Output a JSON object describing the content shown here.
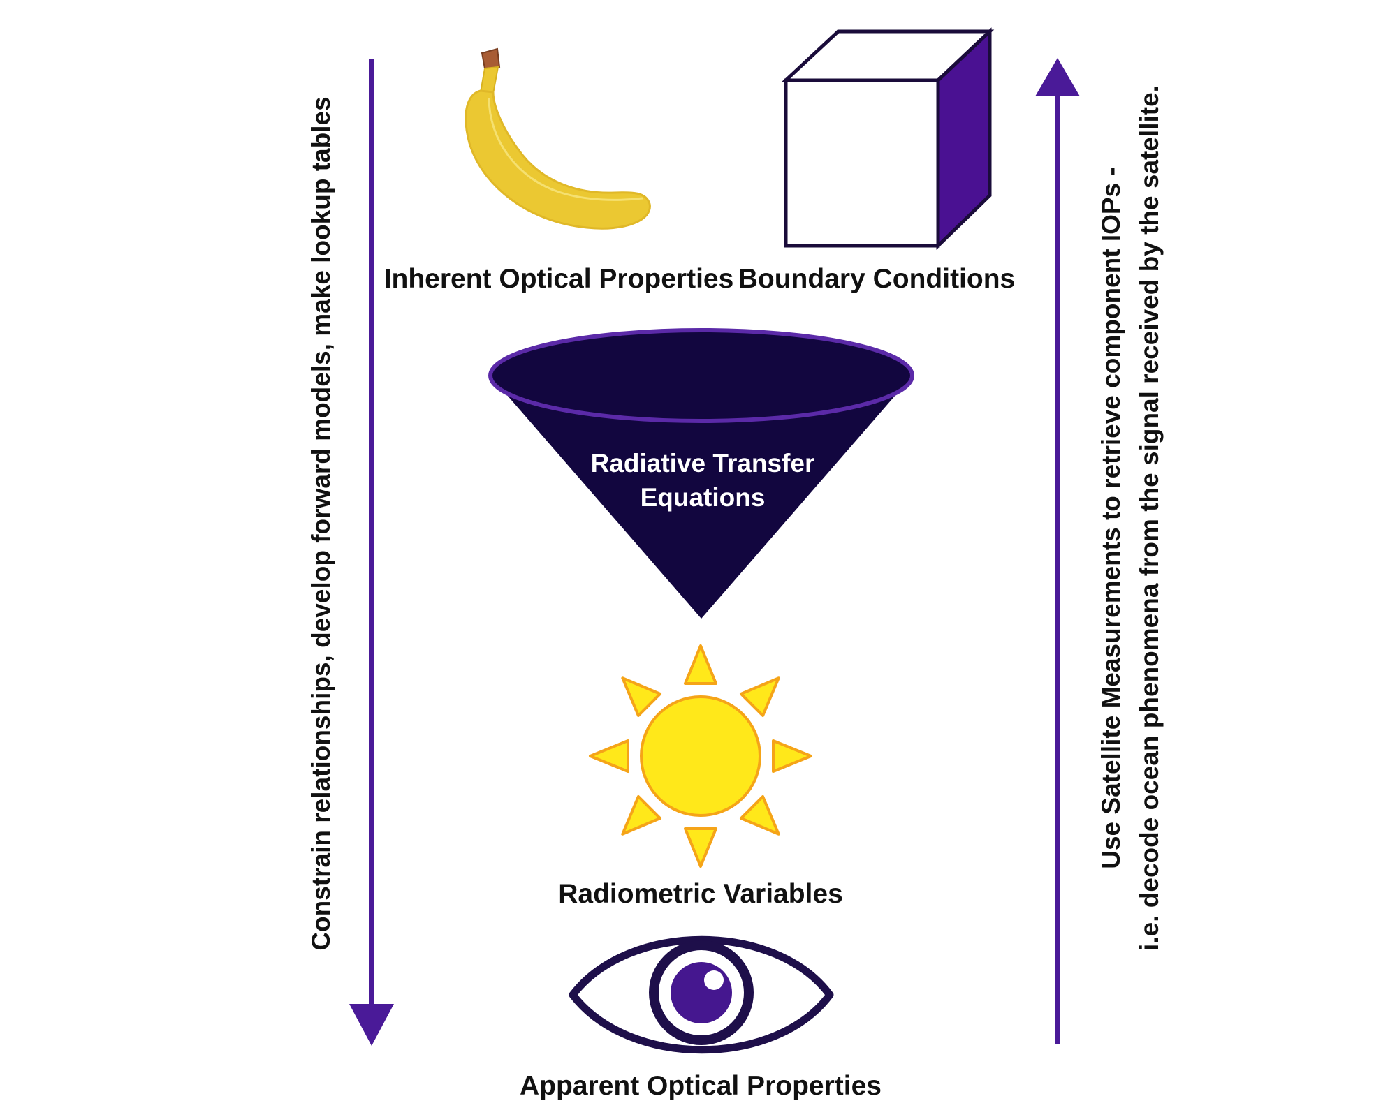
{
  "colors": {
    "arrow": "#4a1a98",
    "funnel_fill": "#12063f",
    "funnel_rim": "#5b2aa8",
    "banana": "#ebc832",
    "banana_stem": "#a85c34",
    "cube_side": "#4a1192",
    "sun": "#ffe81a",
    "sun_stroke": "#f5a418",
    "eye_outline": "#1e0f4a",
    "iris": "#45178f",
    "text": "#111111"
  },
  "icons": {
    "banana": "banana-icon",
    "cube": "cube-icon",
    "funnel": "funnel-icon",
    "sun": "sun-icon",
    "eye": "eye-icon"
  },
  "labels": {
    "iop": "Inherent Optical Properties",
    "boundary": "Boundary Conditions",
    "rte_line1": "Radiative Transfer",
    "rte_line2": "Equations",
    "radiometric": "Radiometric Variables",
    "aop": "Apparent Optical Properties"
  },
  "arrows": {
    "left_text": "Constrain relationships, develop forward models, make lookup tables",
    "right_text_line1": "Use Satellite Measurements to retrieve component IOPs -",
    "right_text_line2": "i.e. decode ocean phenomena from the signal received by the satellite."
  }
}
